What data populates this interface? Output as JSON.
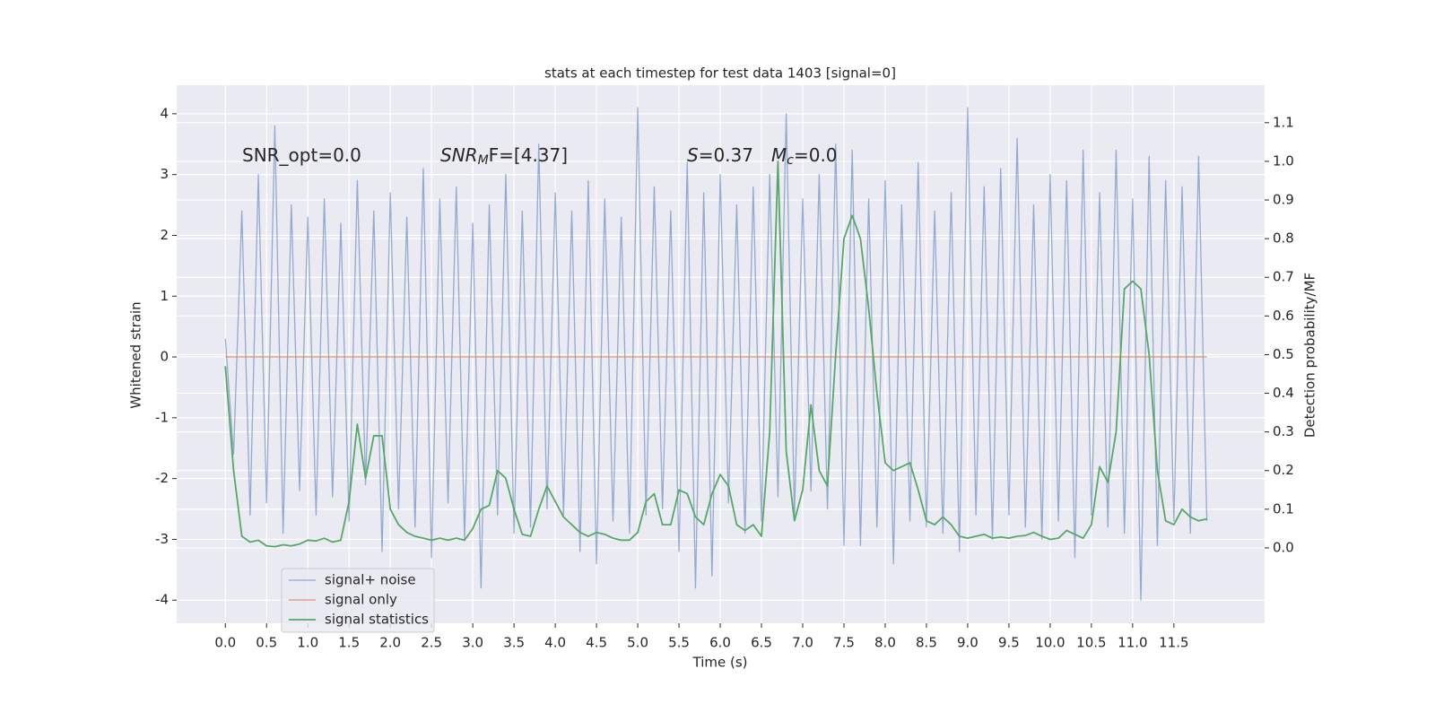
{
  "chart_data": {
    "type": "line",
    "title": "stats at each timestep for test data 1403 [signal=0]",
    "xlabel": "Time (s)",
    "ylabel": "Whitened strain",
    "y2label": "Detection probability/MF",
    "xlim": [
      -0.59,
      12.6
    ],
    "ylim": [
      -4.38,
      4.47
    ],
    "y2lim": [
      -0.195,
      1.197
    ],
    "xticks": [
      {
        "value": 0,
        "label": "0.0"
      },
      0.5,
      {
        "value": 1,
        "label": "1.0"
      },
      1.5,
      {
        "value": 2,
        "label": "2.0"
      },
      2.5,
      {
        "value": 3,
        "label": "3.0"
      },
      3.5,
      {
        "value": 4,
        "label": "4.0"
      },
      4.5,
      {
        "value": 5,
        "label": "5.0"
      },
      5.5,
      {
        "value": 6,
        "label": "6.0"
      },
      6.5,
      {
        "value": 7,
        "label": "7.0"
      },
      7.5,
      {
        "value": 8,
        "label": "8.0"
      },
      8.5,
      {
        "value": 9,
        "label": "9.0"
      },
      9.5,
      {
        "value": 10,
        "label": "10.0"
      },
      10.5,
      {
        "value": 11,
        "label": "11.0"
      },
      11.5
    ],
    "yticks": [
      -4,
      -3,
      -2,
      -1,
      0,
      1,
      2,
      3,
      4
    ],
    "y2ticks": [
      {
        "value": 0,
        "label": "0.0"
      },
      0.1,
      0.2,
      0.3,
      0.4,
      0.5,
      0.6,
      0.7,
      0.8,
      0.9,
      {
        "value": 1,
        "label": "1.0"
      },
      1.1
    ],
    "grid": true,
    "legend": "lower left",
    "annotations": [
      {
        "parts": [
          "SNR_opt=0.0"
        ]
      },
      {
        "parts": [
          "SNR",
          "M",
          "F=[4.37]"
        ]
      },
      {
        "parts": [
          "S",
          "=0.37",
          "M",
          "c",
          "=0.0"
        ]
      }
    ],
    "x": [
      0.0,
      0.1,
      0.2,
      0.3,
      0.4,
      0.5,
      0.6,
      0.7,
      0.8,
      0.9,
      1.0,
      1.1,
      1.2,
      1.3,
      1.4,
      1.5,
      1.6,
      1.7,
      1.8,
      1.9,
      2.0,
      2.1,
      2.2,
      2.3,
      2.4,
      2.5,
      2.6,
      2.7,
      2.8,
      2.9,
      3.0,
      3.1,
      3.2,
      3.3,
      3.4,
      3.5,
      3.6,
      3.7,
      3.8,
      3.9,
      4.0,
      4.1,
      4.2,
      4.3,
      4.4,
      4.5,
      4.6,
      4.7,
      4.8,
      4.9,
      5.0,
      5.1,
      5.2,
      5.3,
      5.4,
      5.5,
      5.6,
      5.7,
      5.8,
      5.9,
      6.0,
      6.1,
      6.2,
      6.3,
      6.4,
      6.5,
      6.6,
      6.7,
      6.8,
      6.9,
      7.0,
      7.1,
      7.2,
      7.3,
      7.4,
      7.5,
      7.6,
      7.7,
      7.8,
      7.9,
      8.0,
      8.1,
      8.2,
      8.3,
      8.4,
      8.5,
      8.6,
      8.7,
      8.8,
      8.9,
      9.0,
      9.1,
      9.2,
      9.3,
      9.4,
      9.5,
      9.6,
      9.7,
      9.8,
      9.9,
      10.0,
      10.1,
      10.2,
      10.3,
      10.4,
      10.5,
      10.6,
      10.7,
      10.8,
      10.9,
      11.0,
      11.1,
      11.2,
      11.3,
      11.4,
      11.5,
      11.6,
      11.7,
      11.8,
      11.9
    ],
    "series": [
      {
        "name": "signal+ noise",
        "color": "#4c72b0",
        "values": [
          0.3,
          -1.6,
          2.4,
          -2.6,
          3.0,
          -2.4,
          3.8,
          -2.9,
          2.5,
          -2.2,
          2.3,
          -2.6,
          2.6,
          -2.3,
          2.2,
          -2.7,
          2.9,
          -2.1,
          2.4,
          -3.2,
          2.7,
          -2.5,
          2.3,
          -2.8,
          3.1,
          -3.3,
          2.6,
          -2.4,
          2.8,
          -3.0,
          2.2,
          -3.8,
          2.5,
          -2.6,
          3.0,
          -2.9,
          2.4,
          -2.8,
          3.5,
          -2.5,
          2.7,
          -2.6,
          2.4,
          -3.2,
          2.9,
          -3.4,
          2.6,
          -2.7,
          2.3,
          -2.9,
          4.1,
          -2.6,
          2.8,
          -2.5,
          2.4,
          -3.2,
          3.2,
          -3.8,
          2.7,
          -3.6,
          3.0,
          -2.4,
          2.5,
          -2.9,
          2.8,
          -2.7,
          3.0,
          -2.3,
          4.0,
          -2.6,
          2.6,
          -2.2,
          3.0,
          -2.5,
          3.5,
          -3.1,
          3.4,
          -3.1,
          2.6,
          -2.8,
          2.9,
          -3.4,
          2.5,
          -2.7,
          3.2,
          -2.8,
          2.4,
          -2.9,
          2.7,
          -3.2,
          4.1,
          -2.6,
          2.8,
          -3.0,
          3.1,
          -2.6,
          3.6,
          -2.8,
          2.5,
          -3.0,
          3.0,
          -2.7,
          2.9,
          -3.3,
          3.4,
          -2.6,
          2.7,
          -2.8,
          3.4,
          -2.9,
          2.6,
          -4.0,
          3.3,
          -3.1,
          2.9,
          -2.7,
          2.8,
          -2.9,
          3.3,
          -2.7
        ]
      },
      {
        "name": "signal only",
        "color": "#dd8452",
        "values": [
          0,
          0,
          0,
          0,
          0,
          0,
          0,
          0,
          0,
          0,
          0,
          0,
          0,
          0,
          0,
          0,
          0,
          0,
          0,
          0,
          0,
          0,
          0,
          0,
          0,
          0,
          0,
          0,
          0,
          0,
          0,
          0,
          0,
          0,
          0,
          0,
          0,
          0,
          0,
          0,
          0,
          0,
          0,
          0,
          0,
          0,
          0,
          0,
          0,
          0,
          0,
          0,
          0,
          0,
          0,
          0,
          0,
          0,
          0,
          0,
          0,
          0,
          0,
          0,
          0,
          0,
          0,
          0,
          0,
          0,
          0,
          0,
          0,
          0,
          0,
          0,
          0,
          0,
          0,
          0,
          0,
          0,
          0,
          0,
          0,
          0,
          0,
          0,
          0,
          0,
          0,
          0,
          0,
          0,
          0,
          0,
          0,
          0,
          0,
          0,
          0,
          0,
          0,
          0,
          0,
          0,
          0,
          0,
          0,
          0,
          0,
          0,
          0,
          0,
          0,
          0,
          0,
          0,
          0,
          0
        ]
      },
      {
        "name": "signal statistics",
        "color": "#55a868",
        "axis": "y2",
        "values": [
          0.47,
          0.2,
          0.03,
          0.015,
          0.02,
          0.005,
          0.003,
          0.008,
          0.005,
          0.01,
          0.02,
          0.018,
          0.025,
          0.015,
          0.02,
          0.12,
          0.32,
          0.18,
          0.29,
          0.29,
          0.1,
          0.06,
          0.04,
          0.03,
          0.025,
          0.02,
          0.025,
          0.02,
          0.025,
          0.02,
          0.05,
          0.1,
          0.11,
          0.2,
          0.18,
          0.1,
          0.035,
          0.03,
          0.1,
          0.16,
          0.12,
          0.08,
          0.06,
          0.04,
          0.03,
          0.04,
          0.035,
          0.025,
          0.02,
          0.02,
          0.04,
          0.12,
          0.14,
          0.06,
          0.06,
          0.15,
          0.14,
          0.08,
          0.06,
          0.14,
          0.19,
          0.16,
          0.06,
          0.045,
          0.06,
          0.03,
          0.3,
          1.0,
          0.25,
          0.07,
          0.15,
          0.37,
          0.2,
          0.16,
          0.5,
          0.8,
          0.86,
          0.8,
          0.62,
          0.4,
          0.22,
          0.2,
          0.21,
          0.22,
          0.15,
          0.07,
          0.06,
          0.08,
          0.06,
          0.03,
          0.025,
          0.03,
          0.035,
          0.025,
          0.028,
          0.025,
          0.03,
          0.032,
          0.04,
          0.03,
          0.022,
          0.025,
          0.045,
          0.035,
          0.025,
          0.06,
          0.21,
          0.17,
          0.3,
          0.67,
          0.69,
          0.67,
          0.5,
          0.2,
          0.07,
          0.06,
          0.1,
          0.08,
          0.07,
          0.075
        ]
      }
    ]
  }
}
